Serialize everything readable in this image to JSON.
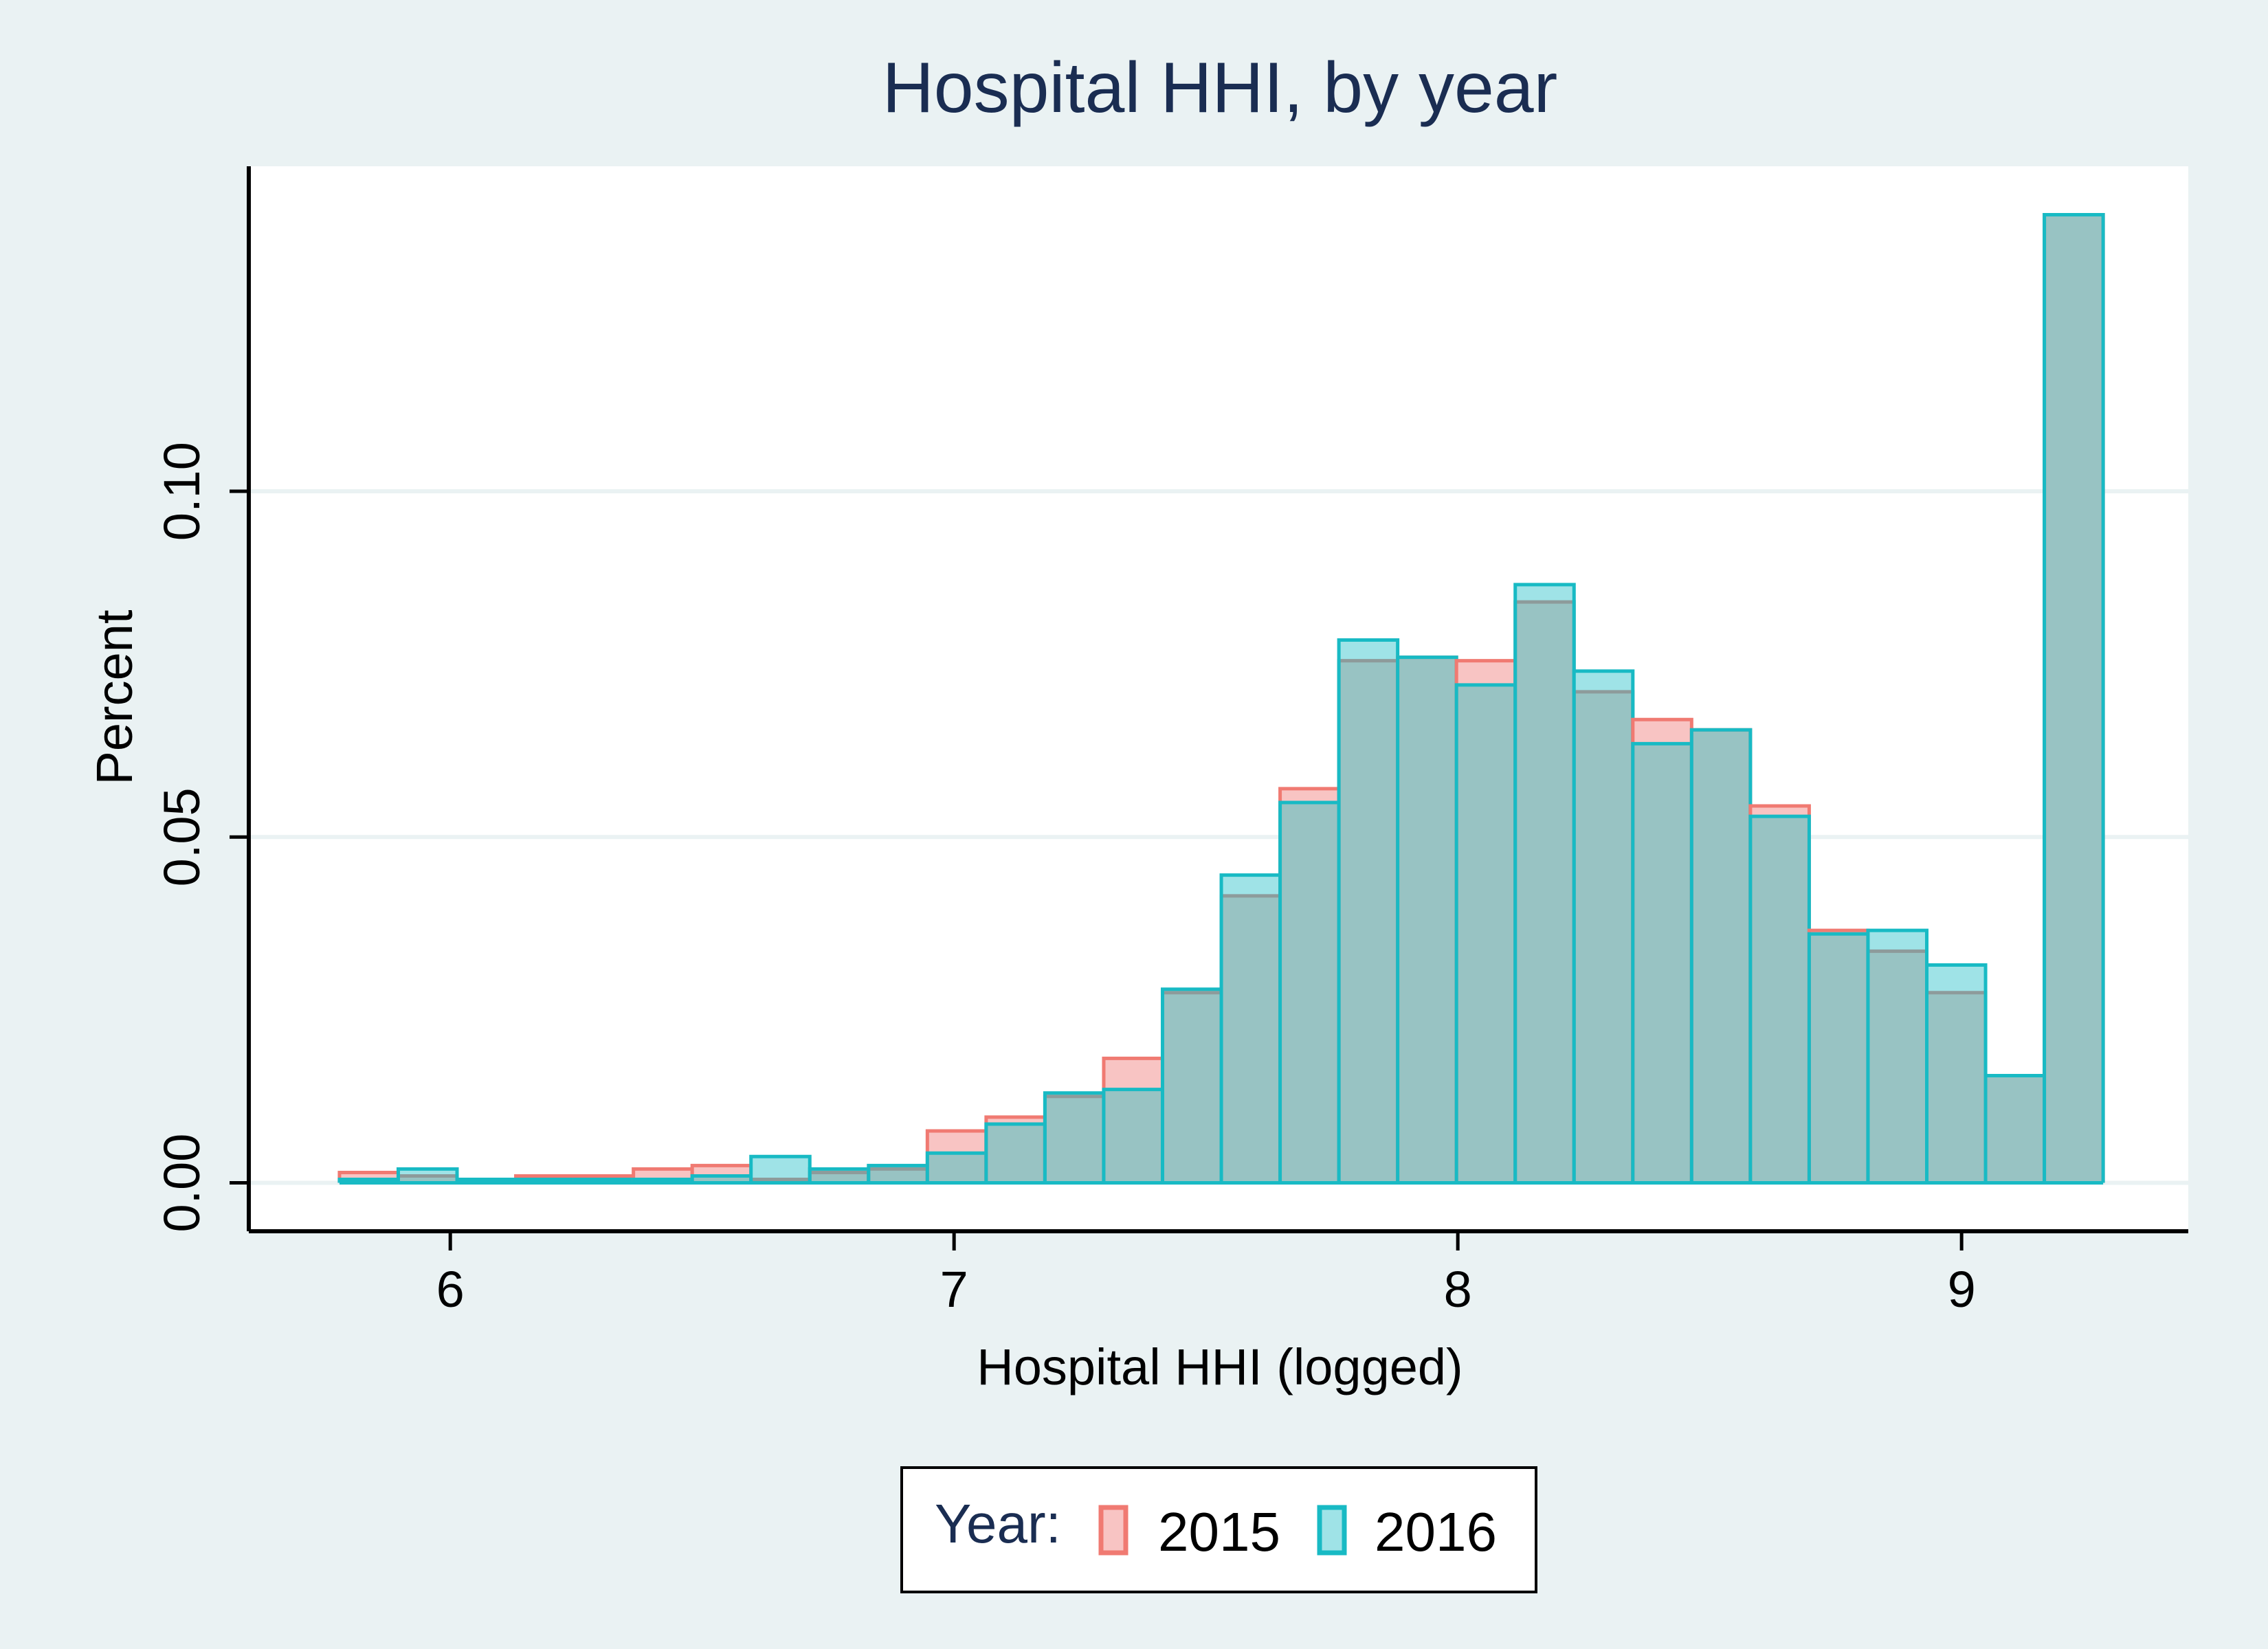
{
  "chart_data": {
    "type": "bar",
    "title": "Hospital HHI, by year",
    "xlabel": "Hospital HHI (logged)",
    "ylabel": "Percent",
    "xlim": [
      5.6,
      9.45
    ],
    "ylim": [
      -0.007,
      0.147
    ],
    "xticks": [
      6,
      7,
      8,
      9
    ],
    "xtick_labels": [
      "6",
      "7",
      "8",
      "9"
    ],
    "yticks": [
      0,
      0.05,
      0.1
    ],
    "ytick_labels": [
      "0.00",
      "0.05",
      "0.10"
    ],
    "grid": true,
    "legend_position": "bottom",
    "legend_title": "Year:",
    "bin_width": 0.1167,
    "bin_start": 5.78,
    "series": [
      {
        "name": "2015",
        "fill": "#f8c4c3",
        "stroke": "#f07a72",
        "values": [
          0.0015,
          0.001,
          0.0005,
          0.001,
          0.001,
          0.002,
          0.0025,
          0.0005,
          0.0015,
          0.002,
          0.0075,
          0.0095,
          0.0125,
          0.018,
          0.0275,
          0.0415,
          0.057,
          0.0755,
          0.076,
          0.0755,
          0.084,
          0.071,
          0.067,
          0.0655,
          0.0545,
          0.0365,
          0.0335,
          0.0275,
          0.0155,
          0.14
        ]
      },
      {
        "name": "2016",
        "fill": "#9fe3e7",
        "stroke": "#18bac4",
        "values": [
          0.0005,
          0.002,
          0.0005,
          0.0005,
          0.0005,
          0.0005,
          0.001,
          0.0038,
          0.002,
          0.0025,
          0.0043,
          0.0085,
          0.013,
          0.0135,
          0.028,
          0.0445,
          0.055,
          0.0785,
          0.076,
          0.072,
          0.0865,
          0.074,
          0.0635,
          0.0655,
          0.053,
          0.036,
          0.0365,
          0.0315,
          0.0155,
          0.14
        ]
      }
    ],
    "overlap_fill": "#98c3c3",
    "overlap_stroke": "#8d9b9b"
  }
}
